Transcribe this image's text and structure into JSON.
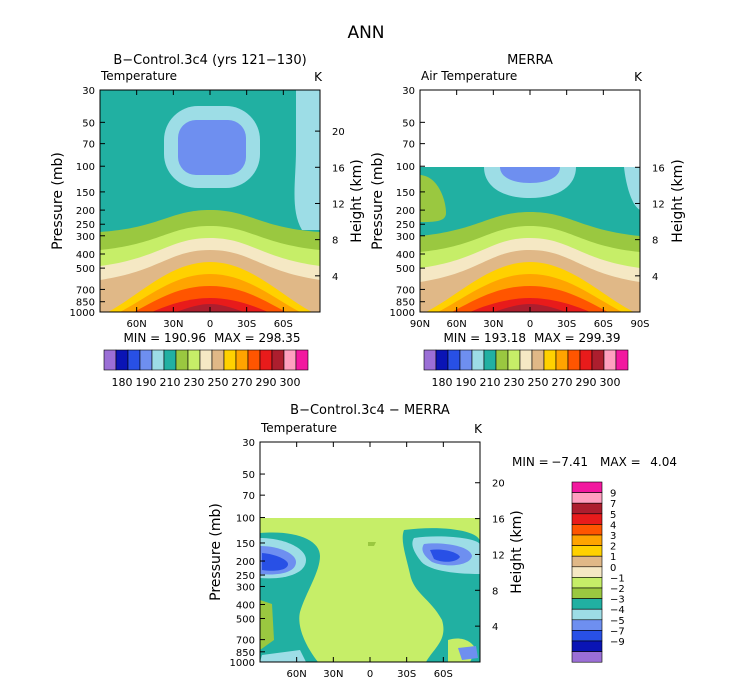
{
  "figure_title": "ANN",
  "colors": {
    "abs_palette": [
      "#9b6fd6",
      "#0a14b5",
      "#2850e6",
      "#6e8ff0",
      "#9ddde6",
      "#21b0a2",
      "#9ac840",
      "#c6ee68",
      "#f5e8c4",
      "#e0b887",
      "#ffd100",
      "#ffa400",
      "#ff5500",
      "#e81b1b",
      "#ad1e2e",
      "#ff9fbf",
      "#f2189f"
    ],
    "diff_palette": [
      "#9b6fd6",
      "#0a14b5",
      "#2850e6",
      "#6e8ff0",
      "#9ddde6",
      "#21b0a2",
      "#9ac840",
      "#c6ee68",
      "#f5e8c4",
      "#e0b887",
      "#ffd100",
      "#ffa400",
      "#ff5500",
      "#e81b1b",
      "#ad1e2e",
      "#ff9fbf",
      "#f2189f"
    ]
  },
  "chart_data": [
    {
      "type": "contour",
      "title": "B−Control.3c4 (yrs 121−130)",
      "left_label": "Temperature",
      "units": "K",
      "ylabel": "Pressure (mb)",
      "y2label": "Height (km)",
      "yticks": [
        "30",
        "50",
        "70",
        "100",
        "150",
        "200",
        "250",
        "300",
        "400",
        "500",
        "700",
        "850",
        "1000"
      ],
      "ytick_values": [
        30,
        50,
        70,
        100,
        150,
        200,
        250,
        300,
        400,
        500,
        700,
        850,
        1000
      ],
      "y2ticks": [
        "20",
        "16",
        "12",
        "8",
        "4"
      ],
      "y2tick_values": [
        20,
        16,
        12,
        8,
        4
      ],
      "xticks": [
        "60N",
        "30N",
        "0",
        "30S",
        "60S"
      ],
      "xtick_values": [
        60,
        30,
        0,
        -30,
        -60
      ],
      "xlim": [
        90,
        -90
      ],
      "ylim": [
        30,
        1000
      ],
      "min_label": "MIN = 190.96",
      "max_label": "MAX = 298.35",
      "min": 190.96,
      "max": 298.35
    },
    {
      "type": "contour",
      "title": "MERRA",
      "left_label": "Air Temperature",
      "units": "K",
      "ylabel": "Pressure (mb)",
      "y2label": "Height (km)",
      "yticks": [
        "30",
        "50",
        "70",
        "100",
        "150",
        "200",
        "250",
        "300",
        "400",
        "500",
        "700",
        "850",
        "1000"
      ],
      "ytick_values": [
        30,
        50,
        70,
        100,
        150,
        200,
        250,
        300,
        400,
        500,
        700,
        850,
        1000
      ],
      "y2ticks": [
        "16",
        "12",
        "8",
        "4"
      ],
      "y2tick_values": [
        16,
        12,
        8,
        4
      ],
      "xticks": [
        "90N",
        "60N",
        "30N",
        "0",
        "30S",
        "60S",
        "90S"
      ],
      "xtick_values": [
        90,
        60,
        30,
        0,
        -30,
        -60,
        -90
      ],
      "xlim": [
        90,
        -90
      ],
      "ylim": [
        30,
        1000
      ],
      "min_label": "MIN = 193.18",
      "max_label": "MAX = 299.39",
      "min": 193.18,
      "max": 299.39
    },
    {
      "type": "contour",
      "title": "B−Control.3c4 − MERRA",
      "left_label": "Temperature",
      "units": "K",
      "ylabel": "Pressure (mb)",
      "y2label": "Height (km)",
      "yticks": [
        "30",
        "50",
        "70",
        "100",
        "150",
        "200",
        "250",
        "300",
        "400",
        "500",
        "700",
        "850",
        "1000"
      ],
      "ytick_values": [
        30,
        50,
        70,
        100,
        150,
        200,
        250,
        300,
        400,
        500,
        700,
        850,
        1000
      ],
      "y2ticks": [
        "20",
        "16",
        "12",
        "8",
        "4"
      ],
      "y2tick_values": [
        20,
        16,
        12,
        8,
        4
      ],
      "xticks": [
        "60N",
        "30N",
        "0",
        "30S",
        "60S"
      ],
      "xtick_values": [
        60,
        30,
        0,
        -30,
        -60
      ],
      "xlim": [
        90,
        -90
      ],
      "ylim": [
        30,
        1000
      ],
      "min_label": "MIN =",
      "min_value": "−7.41",
      "max_label": "MAX =",
      "max_value": "4.04",
      "min": -7.41,
      "max": 4.04
    }
  ],
  "colorbar_abs": {
    "labels": [
      "180",
      "190",
      "210",
      "230",
      "250",
      "270",
      "290",
      "300"
    ]
  },
  "colorbar_diff": {
    "labels": [
      "9",
      "7",
      "5",
      "4",
      "3",
      "2",
      "1",
      "0",
      "−1",
      "−2",
      "−3",
      "−4",
      "−5",
      "−7",
      "−9"
    ]
  }
}
